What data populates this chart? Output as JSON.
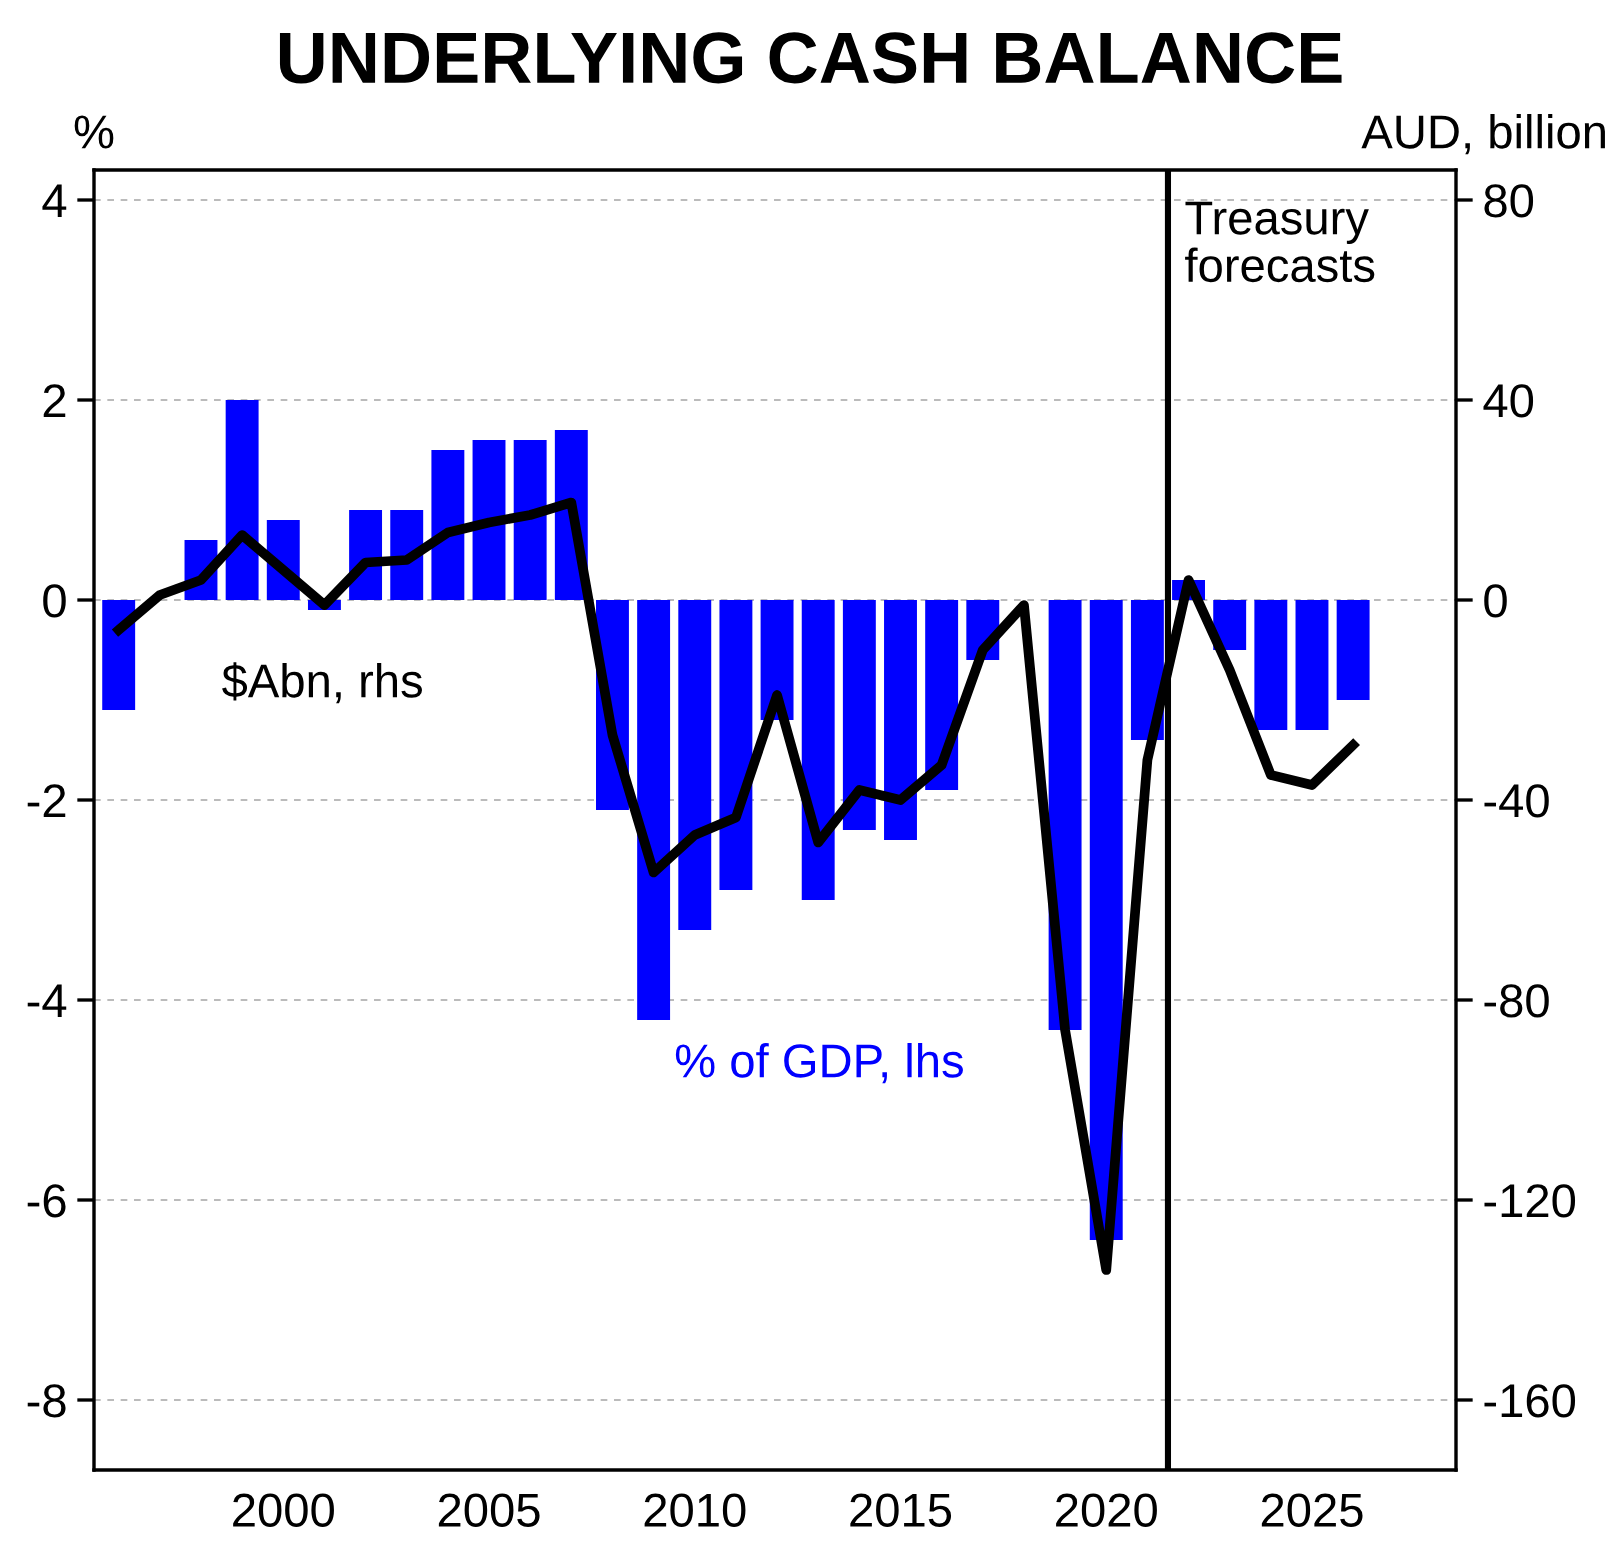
{
  "chart_data": {
    "type": "bar",
    "title": "UNDERLYING CASH BALANCE",
    "ylabel": "%",
    "y2label": "AUD, billion",
    "x": [
      1996,
      1997,
      1998,
      1999,
      2000,
      2001,
      2002,
      2003,
      2004,
      2005,
      2006,
      2007,
      2008,
      2009,
      2010,
      2011,
      2012,
      2013,
      2014,
      2015,
      2016,
      2017,
      2018,
      2019,
      2020,
      2021,
      2022,
      2023,
      2024,
      2025,
      2026
    ],
    "series": [
      {
        "name": "% of GDP, lhs",
        "color": "#0000ff",
        "values": [
          -1.1,
          0,
          0.6,
          2.0,
          0.8,
          -0.1,
          0.9,
          0.9,
          1.5,
          1.6,
          1.6,
          1.7,
          -2.1,
          -4.2,
          -3.3,
          -2.9,
          -1.2,
          -3.0,
          -2.3,
          -2.4,
          -1.9,
          -0.6,
          0,
          -4.3,
          -6.4,
          -1.4,
          0.2,
          -0.5,
          -1.3,
          -1.3,
          -1.0
        ]
      },
      {
        "name": "$Abn, rhs",
        "type": "line",
        "axis": "y2",
        "color": "#000000",
        "values": [
          -6,
          1,
          4,
          13,
          6,
          -1,
          7.5,
          8,
          13.5,
          15.5,
          17,
          19.5,
          -27,
          -54.5,
          -47,
          -43.5,
          -19,
          -48.5,
          -38,
          -40,
          -33,
          -10,
          -1,
          -86,
          -134,
          -32,
          4,
          -14,
          -35,
          -37,
          -29
        ]
      }
    ],
    "xlim": [
      1995.4,
      2028.5
    ],
    "xticks": [
      2000,
      2005,
      2010,
      2015,
      2020,
      2025
    ],
    "ylim": [
      -8.7,
      4.3
    ],
    "yticks": [
      -8,
      -6,
      -4,
      -2,
      0,
      2,
      4
    ],
    "y2lim": [
      -174,
      86
    ],
    "y2ticks": [
      -160,
      -120,
      -80,
      -40,
      0,
      40,
      80
    ],
    "ref_lines": [
      {
        "axis": "x",
        "value": 2021.5,
        "label": "Treasury\nforecasts",
        "color": "#000000"
      }
    ],
    "grid": "y",
    "legend": false
  }
}
